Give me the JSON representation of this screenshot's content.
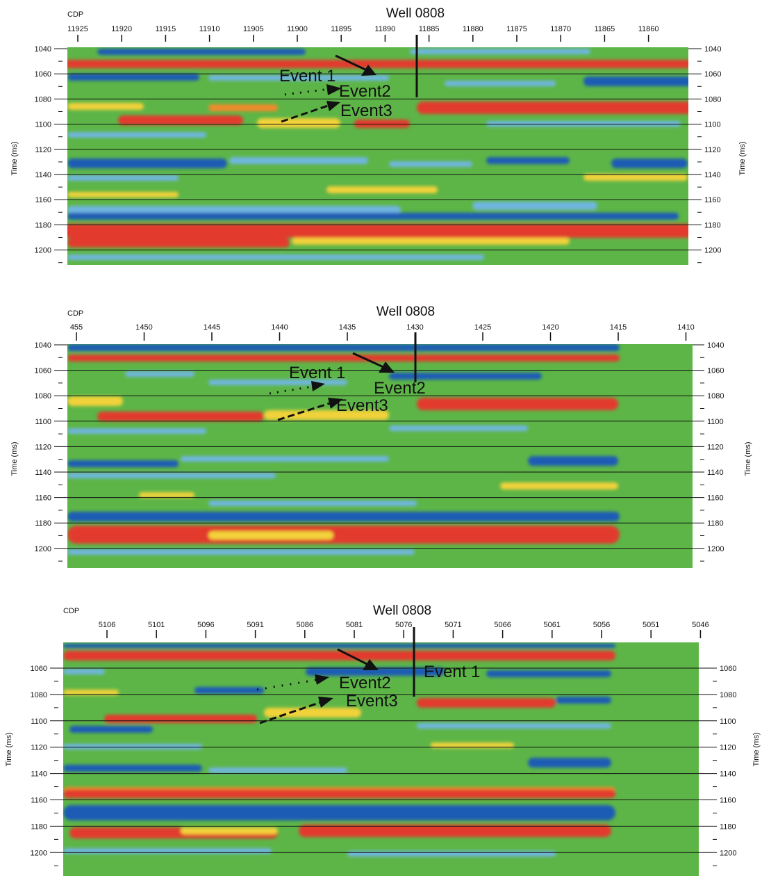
{
  "colors": {
    "background_green": "#5db547",
    "red": "#e23a2f",
    "blue": "#1f5bb5",
    "light_blue": "#6fb6e0",
    "yellow": "#f2d23a",
    "orange": "#f08a2a",
    "line": "#111111"
  },
  "panels": [
    {
      "cdp_label": "CDP",
      "well_label": "Well 0808",
      "cdp_ticks": [
        "11925",
        "11920",
        "11915",
        "11910",
        "11905",
        "11900",
        "11895",
        "11890",
        "11885",
        "11880",
        "11875",
        "11870",
        "11865",
        "11860"
      ],
      "time_axis_label": "Time (ms)",
      "time_ticks": [
        "1040",
        "1060",
        "1080",
        "1100",
        "1120",
        "1140",
        "1160",
        "1180",
        "1200"
      ],
      "events": [
        "Event 1",
        "Event2",
        "Event3"
      ]
    },
    {
      "cdp_label": "CDP",
      "well_label": "Well 0808",
      "cdp_ticks": [
        "455",
        "1450",
        "1445",
        "1440",
        "1435",
        "1430",
        "1425",
        "1420",
        "1415",
        "1410"
      ],
      "time_axis_label": "Time (ms)",
      "time_ticks": [
        "1040",
        "1060",
        "1080",
        "1100",
        "1120",
        "1140",
        "1160",
        "1180",
        "1200"
      ],
      "events": [
        "Event 1",
        "Event2",
        "Event3"
      ]
    },
    {
      "cdp_label": "CDP",
      "well_label": "Well 0808",
      "cdp_ticks": [
        "5106",
        "5101",
        "5096",
        "5091",
        "5086",
        "5081",
        "5076",
        "5071",
        "5066",
        "5061",
        "5056",
        "5051",
        "5046"
      ],
      "time_axis_label": "Time (ms)",
      "time_ticks": [
        "1060",
        "1080",
        "1100",
        "1120",
        "1140",
        "1160",
        "1180",
        "1200"
      ],
      "events": [
        "Event 1",
        "Event2",
        "Event3"
      ]
    }
  ]
}
